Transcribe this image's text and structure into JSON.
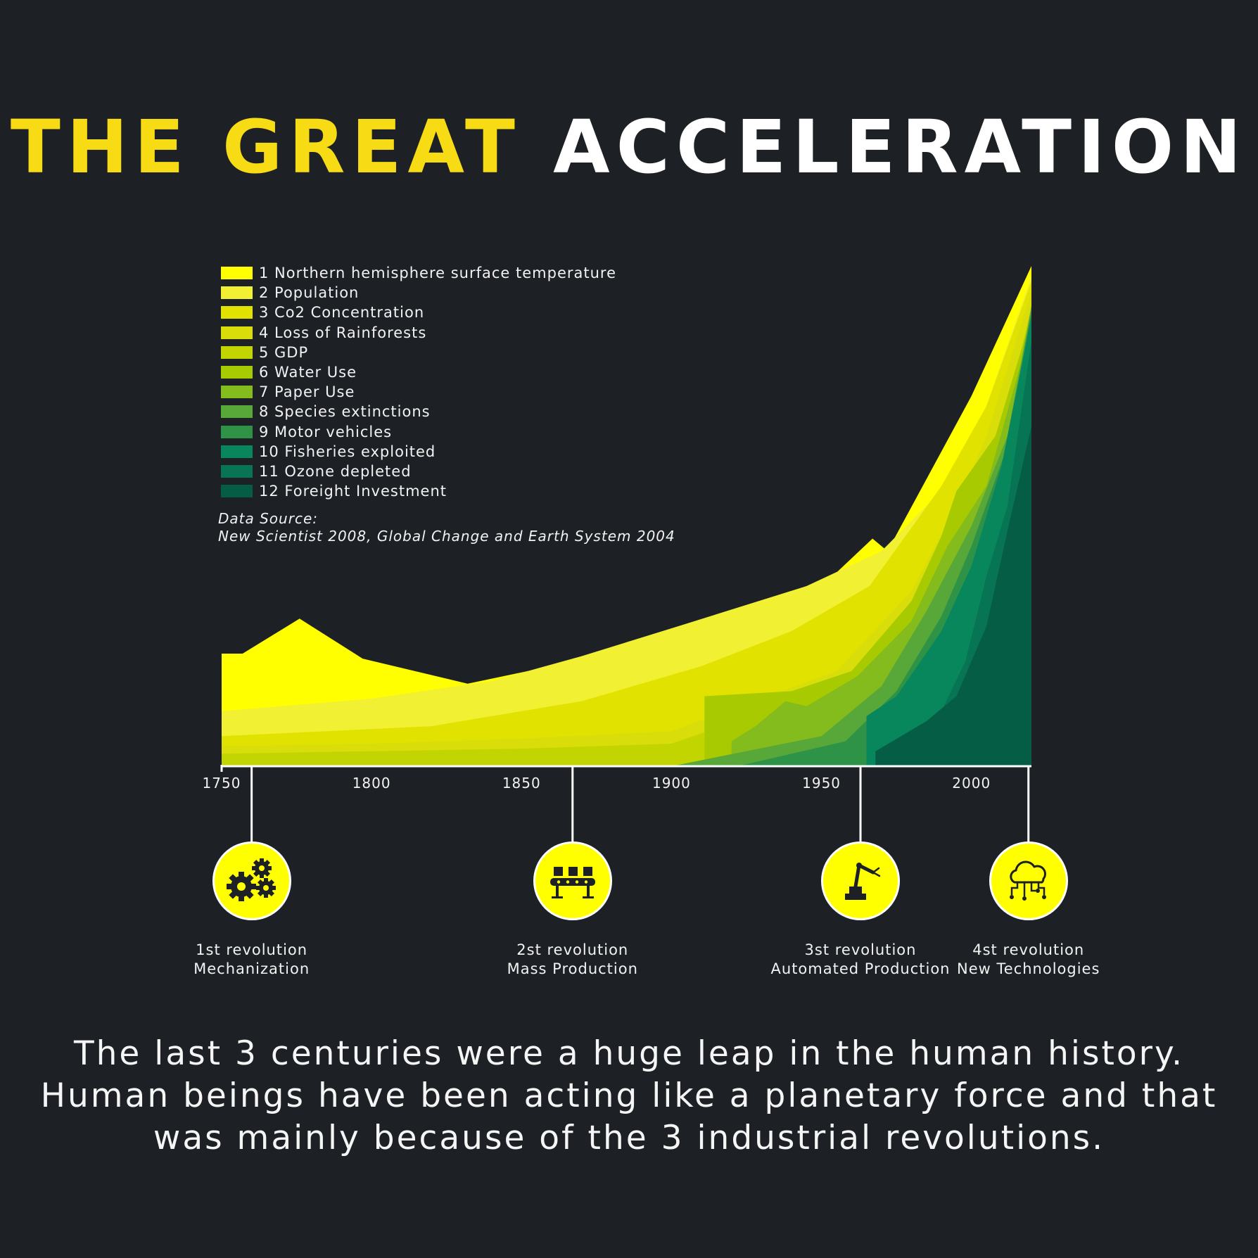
{
  "title": {
    "part1": "THE GREAT",
    "part2": "ACCELERATION"
  },
  "colors": {
    "background": "#1d2126",
    "title_accent": "#f7dc15",
    "icon_fill": "#ffff00",
    "axis": "#ffffff"
  },
  "legend": [
    {
      "label": "1 Northern hemisphere surface temperature",
      "color": "#ffff00"
    },
    {
      "label": "2 Population",
      "color": "#f1f033"
    },
    {
      "label": "3 Co2 Concentration",
      "color": "#e2e200"
    },
    {
      "label": "4 Loss of Rainforests",
      "color": "#d9de0a"
    },
    {
      "label": "5 GDP",
      "color": "#c2d500"
    },
    {
      "label": "6 Water Use",
      "color": "#a8ca00"
    },
    {
      "label": "7 Paper Use",
      "color": "#84bb1d"
    },
    {
      "label": "8 Species extinctions",
      "color": "#57a839"
    },
    {
      "label": "9 Motor vehicles",
      "color": "#2f9347"
    },
    {
      "label": "10 Fisheries exploited",
      "color": "#08865c"
    },
    {
      "label": "11 Ozone depleted",
      "color": "#077553"
    },
    {
      "label": "12 Foreight Investment",
      "color": "#055d45"
    }
  ],
  "source": {
    "line1": "Data Source:",
    "line2": "New Scientist 2008, Global Change and Earth System 2004"
  },
  "chart_data": {
    "type": "area",
    "stacked": false,
    "xlim": [
      1750,
      2020
    ],
    "ylim": [
      0,
      100
    ],
    "x_ticks": [
      1750,
      1800,
      1850,
      1900,
      1950,
      2000
    ],
    "grid": false,
    "legend_position": "top-left",
    "series": [
      {
        "name": "1 Northern hemisphere surface temperature",
        "points": [
          [
            1750,
            22.5
          ],
          [
            1757,
            22.5
          ],
          [
            1776,
            29.5
          ],
          [
            1797,
            21.5
          ],
          [
            1832,
            16.5
          ],
          [
            1860,
            20
          ],
          [
            1910,
            25.5
          ],
          [
            1935,
            32
          ],
          [
            1952,
            37
          ],
          [
            1967,
            45.5
          ],
          [
            1972,
            43
          ],
          [
            2000,
            74
          ],
          [
            2020,
            100
          ]
        ]
      },
      {
        "name": "2 Population",
        "points": [
          [
            1750,
            11
          ],
          [
            1800,
            13.5
          ],
          [
            1840,
            17
          ],
          [
            1870,
            22
          ],
          [
            1905,
            28.5
          ],
          [
            1945,
            36
          ],
          [
            1970,
            43
          ],
          [
            1998,
            60
          ],
          [
            2020,
            98
          ]
        ]
      },
      {
        "name": "3 Co2 Concentration",
        "points": [
          [
            1750,
            6
          ],
          [
            1820,
            8
          ],
          [
            1870,
            13
          ],
          [
            1910,
            20
          ],
          [
            1940,
            27
          ],
          [
            1966,
            36
          ],
          [
            1990,
            56
          ],
          [
            2005,
            72
          ],
          [
            2020,
            97
          ]
        ]
      },
      {
        "name": "4 Loss of Rainforests",
        "points": [
          [
            1750,
            4
          ],
          [
            1800,
            4.5
          ],
          [
            1850,
            5.5
          ],
          [
            1900,
            7
          ],
          [
            1955,
            19
          ],
          [
            1980,
            35
          ],
          [
            1995,
            52
          ],
          [
            2005,
            66
          ],
          [
            2020,
            95
          ]
        ]
      },
      {
        "name": "5 GDP",
        "points": [
          [
            1750,
            2.5
          ],
          [
            1800,
            3
          ],
          [
            1850,
            3.5
          ],
          [
            1900,
            4.5
          ],
          [
            1960,
            17
          ],
          [
            1985,
            35
          ],
          [
            1998,
            50
          ],
          [
            2010,
            66
          ],
          [
            2020,
            92
          ]
        ]
      },
      {
        "name": "6 Water Use",
        "points": [
          [
            1911,
            0
          ],
          [
            1911,
            14
          ],
          [
            1940,
            15
          ],
          [
            1960,
            19
          ],
          [
            1980,
            33
          ],
          [
            1990,
            46
          ],
          [
            1995,
            55
          ],
          [
            2008,
            66
          ],
          [
            2020,
            90
          ]
        ]
      },
      {
        "name": "7 Paper Use",
        "points": [
          [
            1920,
            0
          ],
          [
            1920,
            5
          ],
          [
            1928,
            8
          ],
          [
            1938,
            13
          ],
          [
            1945,
            12
          ],
          [
            1962,
            18
          ],
          [
            1980,
            29
          ],
          [
            1992,
            44
          ],
          [
            2005,
            56
          ],
          [
            2020,
            88
          ]
        ]
      },
      {
        "name": "8 Species extinctions",
        "points": [
          [
            1900,
            0
          ],
          [
            1950,
            6
          ],
          [
            1970,
            16
          ],
          [
            1985,
            31
          ],
          [
            2000,
            48
          ],
          [
            2012,
            66
          ],
          [
            2020,
            92
          ]
        ]
      },
      {
        "name": "9 Motor vehicles",
        "points": [
          [
            1922,
            0
          ],
          [
            1958,
            5
          ],
          [
            1975,
            15
          ],
          [
            1990,
            30
          ],
          [
            2000,
            44
          ],
          [
            2012,
            64
          ],
          [
            2020,
            91
          ]
        ]
      },
      {
        "name": "10 Fisheries exploited",
        "points": [
          [
            1965,
            0
          ],
          [
            1965,
            10
          ],
          [
            1975,
            14
          ],
          [
            1990,
            27
          ],
          [
            2000,
            40
          ],
          [
            2010,
            60
          ],
          [
            2020,
            90
          ]
        ]
      },
      {
        "name": "11 Ozone depleted",
        "points": [
          [
            1970,
            0
          ],
          [
            1975,
            3
          ],
          [
            1990,
            11
          ],
          [
            1998,
            21
          ],
          [
            2005,
            38
          ],
          [
            2012,
            52
          ],
          [
            2020,
            85
          ]
        ]
      },
      {
        "name": "12 Foreight Investment",
        "points": [
          [
            1968,
            0
          ],
          [
            1968,
            3
          ],
          [
            1985,
            9
          ],
          [
            1995,
            14
          ],
          [
            2005,
            28
          ],
          [
            2012,
            47
          ],
          [
            2020,
            68
          ]
        ]
      }
    ]
  },
  "revolutions": [
    {
      "year": 1760,
      "line1": "1st revolution",
      "line2": "Mechanization",
      "icon": "gears-icon"
    },
    {
      "year": 1867,
      "line1": "2st revolution",
      "line2": "Mass Production",
      "icon": "conveyor-belt-icon"
    },
    {
      "year": 1963,
      "line1": "3st revolution",
      "line2": "Automated Production",
      "icon": "robot-arm-icon"
    },
    {
      "year": 2019,
      "line1": "4st revolution",
      "line2": "New Technologies",
      "icon": "cloud-network-icon"
    }
  ],
  "caption": [
    "The last 3 centuries were a huge leap in the human history.",
    "Human beings have been acting like a planetary force and that",
    "was mainly because of the 3 industrial revolutions."
  ]
}
